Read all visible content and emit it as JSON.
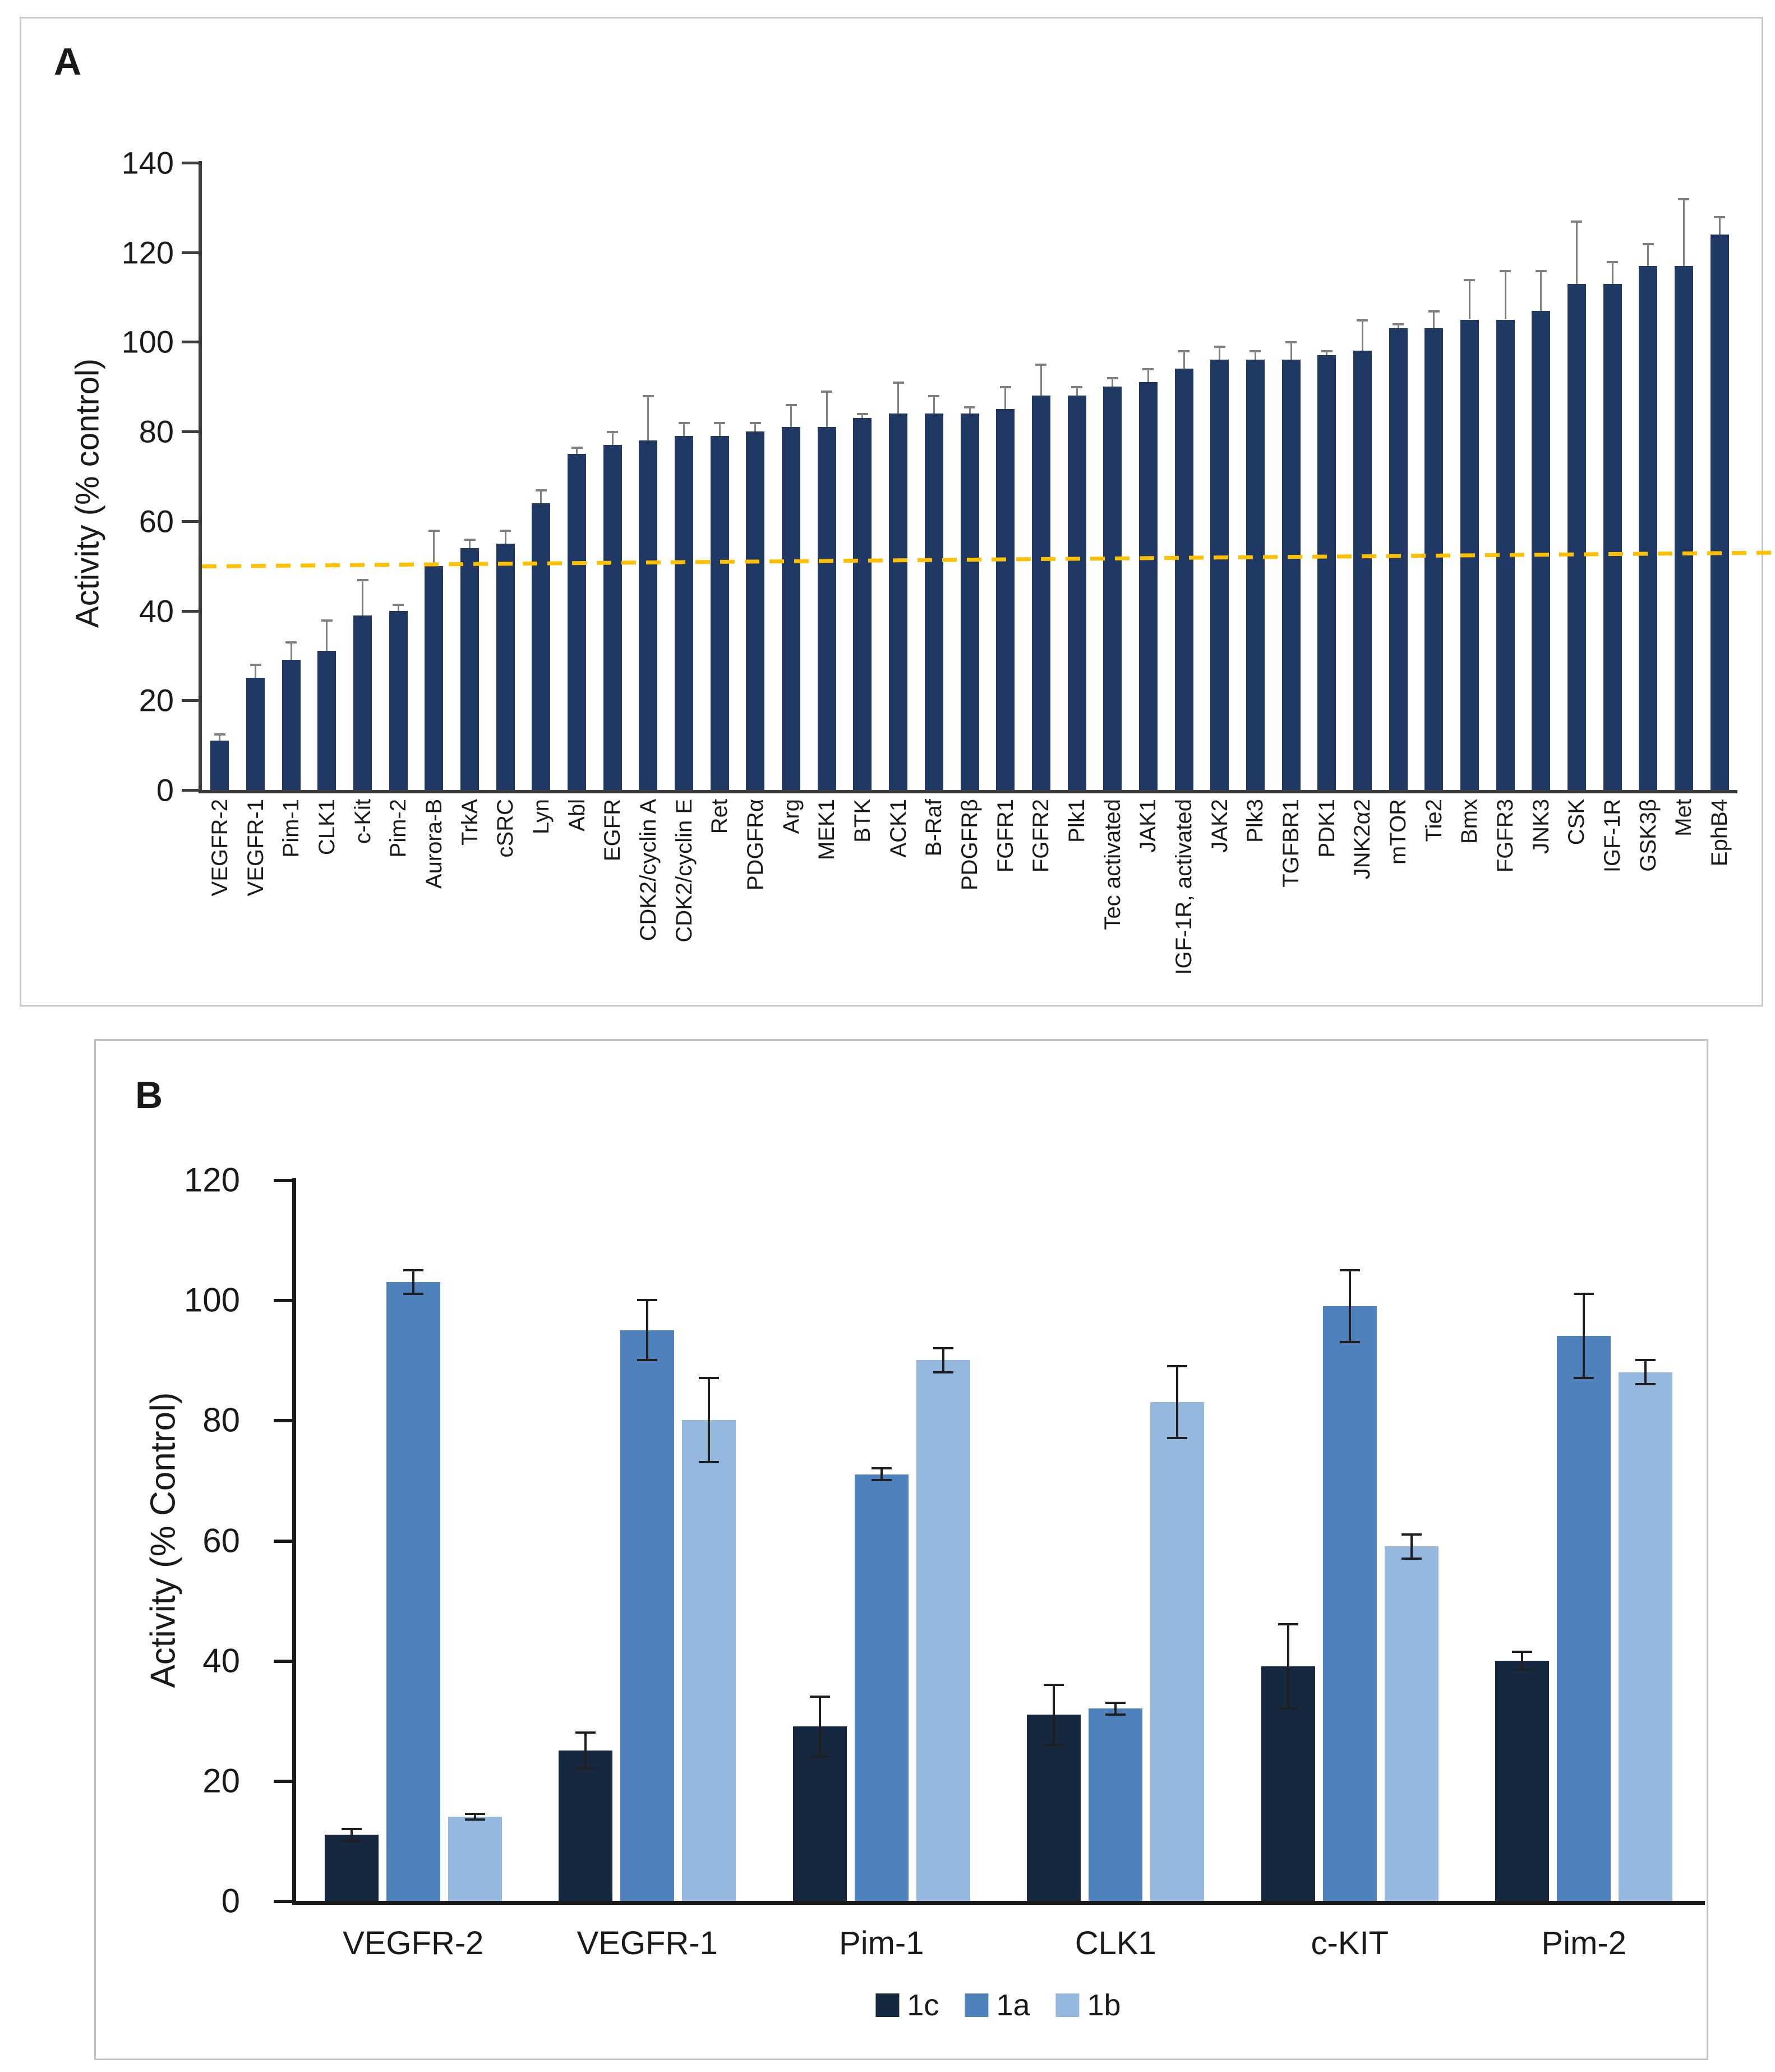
{
  "figure": {
    "panel_a": {
      "label": "A",
      "ylabel": "Activity (% control)"
    },
    "panel_b": {
      "label": "B",
      "ylabel": "Activity (% Control)"
    }
  },
  "chart_data": [
    {
      "type": "bar",
      "panel": "A",
      "title": "",
      "xlabel": "",
      "ylabel": "Activity (% control)",
      "ylim": [
        0,
        140
      ],
      "yticks": [
        0,
        20,
        40,
        60,
        80,
        100,
        120,
        140
      ],
      "grid": false,
      "bar_color": "#1F3864",
      "error_color": "#808080",
      "axis_color": "#3d3d3d",
      "reference_line": {
        "value": 50,
        "style": "dashed",
        "color": "#FFC000"
      },
      "categories": [
        "VEGFR-2",
        "VEGFR-1",
        "Pim-1",
        "CLK1",
        "c-Kit",
        "Pim-2",
        "Aurora-B",
        "TrkA",
        "cSRC",
        "Lyn",
        "Abl",
        "EGFR",
        "CDK2/cyclin A",
        "CDK2/cyclin E",
        "Ret",
        "PDGFRα",
        "Arg",
        "MEK1",
        "BTK",
        "ACK1",
        "B-Raf",
        "PDGFRβ",
        "FGFR1",
        "FGFR2",
        "Plk1",
        "Tec activated",
        "JAK1",
        "IGF-1R, activated",
        "JAK2",
        "Plk3",
        "TGFBR1",
        "PDK1",
        "JNK2α2",
        "mTOR",
        "Tie2",
        "Bmx",
        "FGFR3",
        "JNK3",
        "CSK",
        "IGF-1R",
        "GSK3β",
        "Met",
        "EphB4"
      ],
      "values": [
        11,
        25,
        29,
        31,
        39,
        40,
        50,
        54,
        55,
        64,
        75,
        77,
        78,
        79,
        79,
        80,
        81,
        81,
        83,
        84,
        84,
        84,
        85,
        88,
        88,
        90,
        91,
        94,
        96,
        96,
        96,
        97,
        98,
        103,
        103,
        105,
        105,
        107,
        113,
        113,
        117,
        117,
        124
      ],
      "errors": [
        1.5,
        3,
        4,
        7,
        8,
        1.5,
        8,
        2,
        3,
        3,
        1.5,
        3,
        10,
        3,
        3,
        2,
        5,
        8,
        1,
        7,
        4,
        1.5,
        5,
        7,
        2,
        2,
        3,
        4,
        3,
        2,
        4,
        1,
        7,
        1,
        4,
        9,
        11,
        9,
        14,
        5,
        5,
        15,
        4
      ]
    },
    {
      "type": "bar",
      "panel": "B",
      "title": "",
      "xlabel": "",
      "ylabel": "Activity (% Control)",
      "ylim": [
        0,
        120
      ],
      "yticks": [
        0,
        20,
        40,
        60,
        80,
        100,
        120
      ],
      "grid": false,
      "error_color": "#1f1f1f",
      "axis_color": "#1a1a1a",
      "legend_position": "bottom",
      "categories": [
        "VEGFR-2",
        "VEGFR-1",
        "Pim-1",
        "CLK1",
        "c-KIT",
        "Pim-2"
      ],
      "series": [
        {
          "name": "1c",
          "color": "#152840",
          "values": [
            11,
            25,
            29,
            31,
            39,
            40
          ],
          "errors": [
            1,
            3,
            5,
            5,
            7,
            1.5
          ]
        },
        {
          "name": "1a",
          "color": "#4F81BD",
          "values": [
            103,
            95,
            71,
            32,
            99,
            94
          ],
          "errors": [
            2,
            5,
            1,
            1,
            6,
            7
          ]
        },
        {
          "name": "1b",
          "color": "#95B8DF",
          "values": [
            14,
            80,
            90,
            83,
            59,
            88
          ],
          "errors": [
            0.5,
            7,
            2,
            6,
            2,
            2
          ]
        }
      ]
    }
  ]
}
